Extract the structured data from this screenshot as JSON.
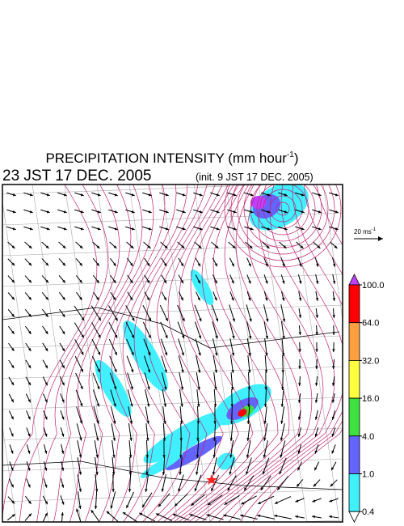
{
  "title": {
    "text": "PRECIPITATION INTENSITY (mm hour",
    "unit_exponent": "-1",
    "close": ")"
  },
  "valid_time": "23 JST 17 DEC. 2005",
  "init_time": "(init. 9 JST 17 DEC. 2005)",
  "reference_vector": {
    "label": "20 ms",
    "exponent": "-1"
  },
  "colorbar": {
    "levels": [
      {
        "value": 100,
        "label": "100.0"
      },
      {
        "value": 64,
        "label": "64.0"
      },
      {
        "value": 32,
        "label": "32.0"
      },
      {
        "value": 16,
        "label": "16.0"
      },
      {
        "value": 4,
        "label": "4.0"
      },
      {
        "value": 1,
        "label": "1.0"
      },
      {
        "value": 0.4,
        "label": "0.4"
      }
    ],
    "colors": [
      "#ff0000",
      "#ffa040",
      "#ffff40",
      "#40e040",
      "#6464ff",
      "#40f0ff"
    ],
    "over_color": "#c040ff"
  }
}
